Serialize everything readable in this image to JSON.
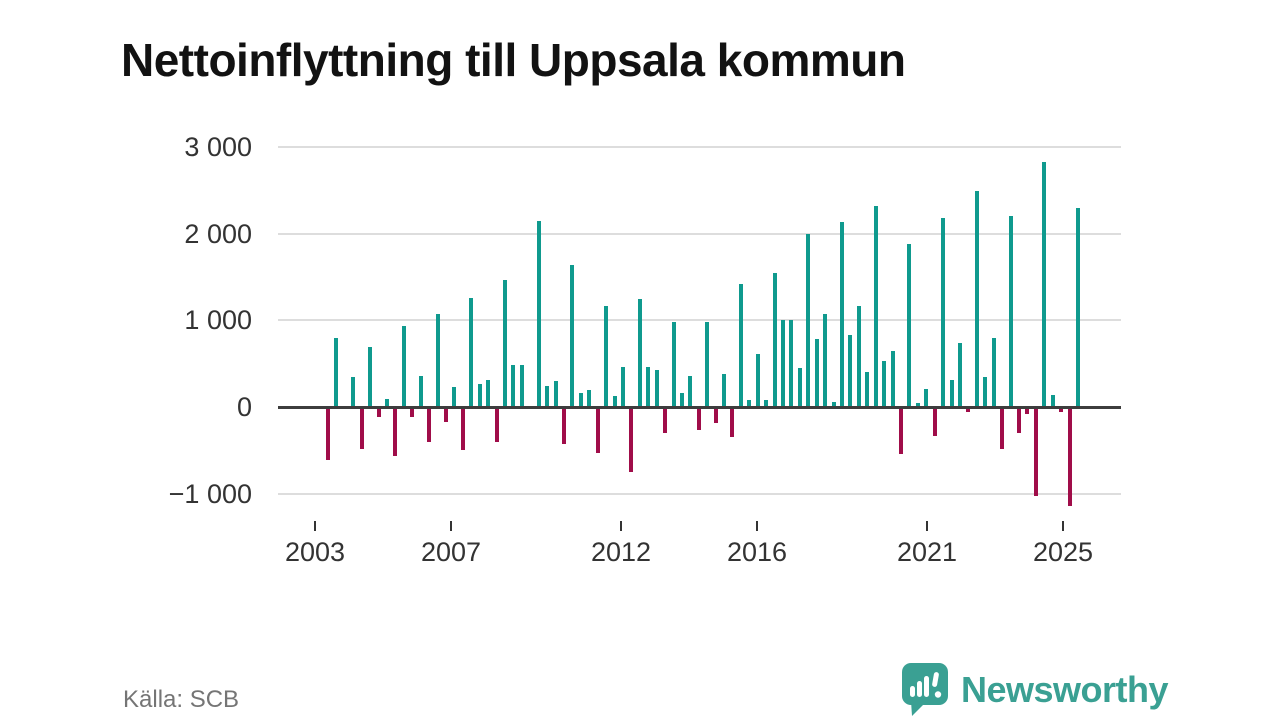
{
  "title": "Nettoinflyttning till Uppsala kommun",
  "footer": {
    "source": "Källa: SCB",
    "brand_name": "Newsworthy"
  },
  "colors": {
    "positive_bar": "#0f9a8e",
    "negative_bar": "#a00d49",
    "brand_teal": "#3aa093",
    "grid_line": "#dddddd",
    "zero_line": "#3d3d3d",
    "axis_text": "#333333",
    "source_text": "#757575",
    "title_text": "#121212"
  },
  "chart_data": {
    "type": "bar",
    "title": "Nettoinflyttning till Uppsala kommun",
    "frequency": "quarterly",
    "x_start": "2003-Q2",
    "x_end": "2025-Q3",
    "quarters": [
      "2003Q2",
      "2003Q3",
      "2003Q4",
      "2004Q1",
      "2004Q2",
      "2004Q3",
      "2004Q4",
      "2005Q1",
      "2005Q2",
      "2005Q3",
      "2005Q4",
      "2006Q1",
      "2006Q2",
      "2006Q3",
      "2006Q4",
      "2007Q1",
      "2007Q2",
      "2007Q3",
      "2007Q4",
      "2008Q1",
      "2008Q2",
      "2008Q3",
      "2008Q4",
      "2009Q1",
      "2009Q2",
      "2009Q3",
      "2009Q4",
      "2010Q1",
      "2010Q2",
      "2010Q3",
      "2010Q4",
      "2011Q1",
      "2011Q2",
      "2011Q3",
      "2011Q4",
      "2012Q1",
      "2012Q2",
      "2012Q3",
      "2012Q4",
      "2013Q1",
      "2013Q2",
      "2013Q3",
      "2013Q4",
      "2014Q1",
      "2014Q2",
      "2014Q3",
      "2014Q4",
      "2015Q1",
      "2015Q2",
      "2015Q3",
      "2015Q4",
      "2016Q1",
      "2016Q2",
      "2016Q3",
      "2016Q4",
      "2017Q1",
      "2017Q2",
      "2017Q3",
      "2017Q4",
      "2018Q1",
      "2018Q2",
      "2018Q3",
      "2018Q4",
      "2019Q1",
      "2019Q2",
      "2019Q3",
      "2019Q4",
      "2020Q1",
      "2020Q2",
      "2020Q3",
      "2020Q4",
      "2021Q1",
      "2021Q2",
      "2021Q3",
      "2021Q4",
      "2022Q1",
      "2022Q2",
      "2022Q3",
      "2022Q4",
      "2023Q1",
      "2023Q2",
      "2023Q3",
      "2023Q4",
      "2024Q1",
      "2024Q2",
      "2024Q3",
      "2024Q4",
      "2025Q1",
      "2025Q2",
      "2025Q3"
    ],
    "values": [
      -610,
      800,
      10,
      350,
      -480,
      690,
      -110,
      90,
      -560,
      930,
      -115,
      355,
      -405,
      1070,
      -175,
      235,
      -500,
      1260,
      260,
      315,
      -405,
      1470,
      490,
      480,
      10,
      2145,
      240,
      295,
      -425,
      1635,
      165,
      200,
      -530,
      1160,
      125,
      460,
      -750,
      1240,
      460,
      425,
      -300,
      980,
      160,
      360,
      -270,
      975,
      -185,
      375,
      -345,
      1415,
      85,
      615,
      85,
      1545,
      1000,
      1000,
      455,
      1990,
      780,
      1070,
      60,
      2135,
      825,
      1165,
      405,
      2315,
      530,
      645,
      -545,
      1885,
      45,
      210,
      -340,
      2185,
      315,
      740,
      -60,
      2490,
      345,
      800,
      -490,
      2200,
      -300,
      -85,
      -1030,
      2825,
      135,
      -60,
      -1145,
      2290
    ],
    "yticks": [
      3000,
      2000,
      1000,
      0,
      -1000
    ],
    "ytick_labels": [
      "3 000",
      "2 000",
      "1 000",
      "0",
      "−1 000"
    ],
    "xtick_years": [
      2003,
      2007,
      2012,
      2016,
      2021,
      2025
    ],
    "xtick_labels": [
      "2003",
      "2007",
      "2012",
      "2016",
      "2021",
      "2025"
    ],
    "ylim": [
      -1300,
      3100
    ],
    "grid": true,
    "legend": false,
    "positive_color": "#0f9a8e",
    "negative_color": "#a00d49"
  }
}
